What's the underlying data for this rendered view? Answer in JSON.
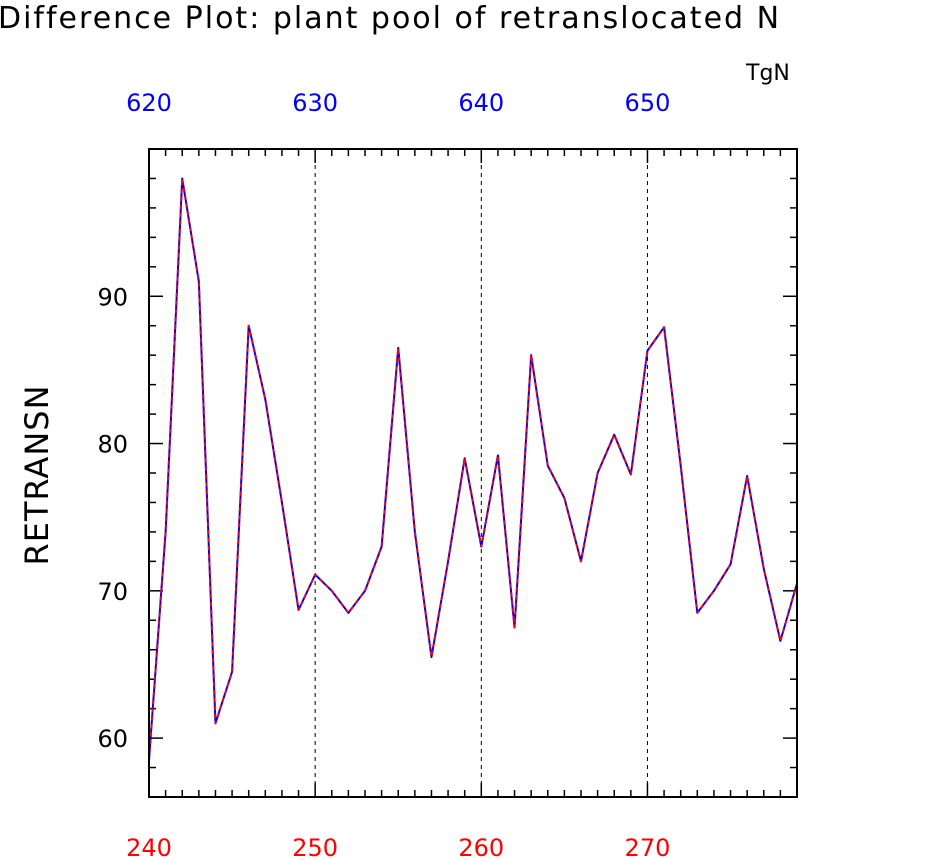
{
  "chart_data": {
    "type": "line",
    "title": "Difference Plot: plant pool of retranslocated N",
    "ylabel": "RETRANSN",
    "units": "TgN",
    "x": [
      240,
      241,
      242,
      243,
      244,
      245,
      246,
      247,
      248,
      249,
      250,
      251,
      252,
      253,
      254,
      255,
      256,
      257,
      258,
      259,
      260,
      261,
      262,
      263,
      264,
      265,
      266,
      267,
      268,
      269,
      270,
      271,
      272,
      273,
      274,
      275,
      276,
      277,
      278,
      279
    ],
    "series": [
      {
        "color": "#0000ff",
        "style": "solid",
        "values": [
          58.5,
          74.0,
          98.0,
          91.0,
          61.0,
          64.5,
          88.0,
          83.0,
          76.0,
          68.7,
          71.1,
          70.0,
          68.5,
          70.0,
          73.0,
          86.5,
          74.0,
          65.5,
          72.0,
          79.0,
          73.0,
          79.2,
          67.5,
          86.0,
          78.5,
          76.3,
          72.0,
          78.0,
          80.6,
          77.9,
          86.3,
          87.9,
          78.5,
          68.5,
          70.0,
          71.8,
          77.8,
          71.5,
          66.6,
          70.5
        ]
      },
      {
        "color": "#ff0000",
        "style": "dashed",
        "values": [
          58.5,
          74.0,
          98.0,
          91.0,
          61.0,
          64.5,
          88.0,
          83.0,
          76.0,
          68.7,
          71.1,
          70.0,
          68.5,
          70.0,
          73.0,
          86.5,
          74.0,
          65.5,
          72.0,
          79.0,
          73.0,
          79.2,
          67.5,
          86.0,
          78.5,
          76.3,
          72.0,
          78.0,
          80.6,
          77.9,
          86.3,
          87.9,
          78.5,
          68.5,
          70.0,
          71.8,
          77.8,
          71.5,
          66.6,
          70.5
        ]
      }
    ],
    "xlim": [
      240,
      279
    ],
    "ylim": [
      56,
      100
    ],
    "bottom_axis": {
      "ticks": [
        240,
        250,
        260,
        270
      ],
      "labels": [
        "240",
        "250",
        "260",
        "270"
      ],
      "color": "#ff0000"
    },
    "top_axis": {
      "range": [
        620,
        659
      ],
      "ticks": [
        620,
        630,
        640,
        650
      ],
      "labels": [
        "620",
        "630",
        "640",
        "650"
      ],
      "color": "#0000ff"
    },
    "left_axis": {
      "ticks": [
        60,
        70,
        80,
        90
      ],
      "labels": [
        "60",
        "70",
        "80",
        "90"
      ],
      "color": "#000000"
    },
    "grid": "vertical dashed at major x ticks"
  }
}
